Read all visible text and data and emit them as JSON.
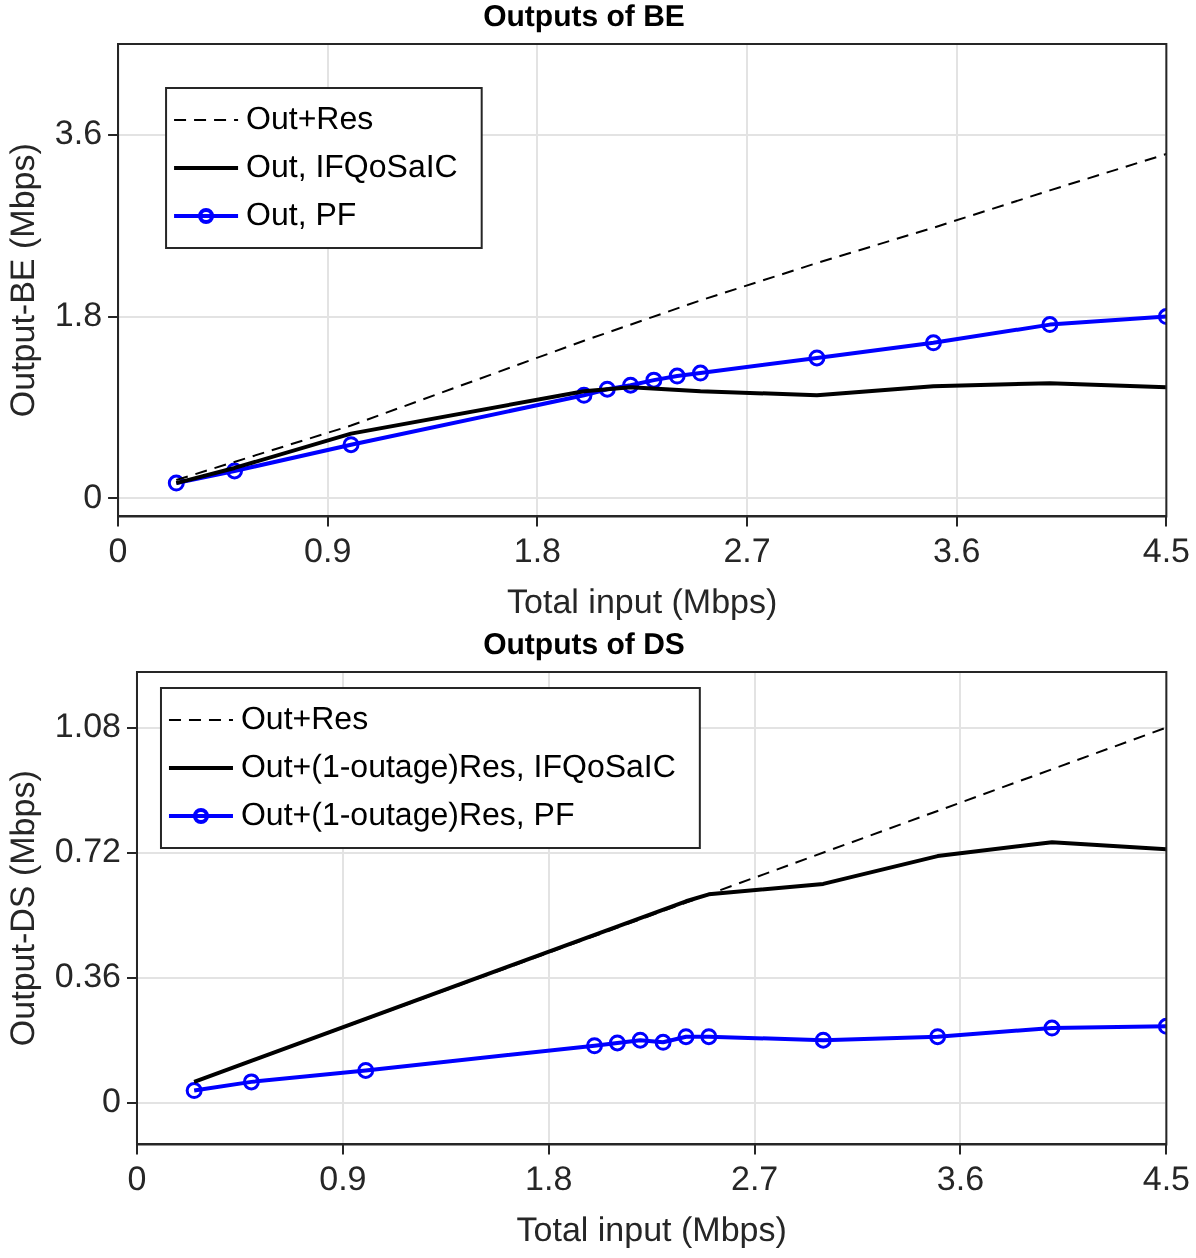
{
  "chart_data": [
    {
      "type": "line",
      "title": "Outputs of BE",
      "xlabel": "Total input (Mbps)",
      "ylabel": "Output-BE (Mbps)",
      "xlim": [
        0,
        4.5
      ],
      "xticks": [
        0,
        0.9,
        1.8,
        2.7,
        3.6,
        4.5
      ],
      "ylim": [
        -0.18,
        4.5
      ],
      "yticks": [
        0,
        1.8,
        3.6
      ],
      "grid": true,
      "legend": "top left",
      "series": [
        {
          "name": "Out+Res",
          "color": "#000000",
          "line_style": "dashed",
          "marker": "none",
          "x": [
            0.25,
            1.0,
            2.0,
            2.5,
            3.0,
            3.5,
            4.0,
            4.5
          ],
          "values": [
            0.18,
            0.72,
            1.56,
            1.96,
            2.33,
            2.68,
            3.05,
            3.41
          ]
        },
        {
          "name": "Out, IFQoSaIC",
          "color": "#000000",
          "line_style": "solid",
          "marker": "none",
          "x": [
            0.25,
            0.5,
            1.0,
            2.0,
            2.2,
            2.5,
            3.0,
            3.5,
            4.0,
            4.5
          ],
          "values": [
            0.15,
            0.3,
            0.64,
            1.06,
            1.1,
            1.06,
            1.02,
            1.11,
            1.14,
            1.1
          ]
        },
        {
          "name": "Out, PF",
          "color": "#0000ff",
          "line_style": "solid",
          "marker": "circle",
          "x": [
            0.25,
            0.5,
            1.0,
            2.0,
            2.1,
            2.2,
            2.3,
            2.4,
            2.5,
            3.0,
            3.5,
            4.0,
            4.5
          ],
          "values": [
            0.15,
            0.27,
            0.53,
            1.02,
            1.08,
            1.12,
            1.17,
            1.21,
            1.24,
            1.39,
            1.54,
            1.72,
            1.8
          ]
        }
      ]
    },
    {
      "type": "line",
      "title": "Outputs of DS",
      "xlabel": "Total input (Mbps)",
      "ylabel": "Output-DS (Mbps)",
      "xlim": [
        0,
        4.5
      ],
      "xticks": [
        0,
        0.9,
        1.8,
        2.7,
        3.6,
        4.5
      ],
      "ylim": [
        -0.12,
        1.24
      ],
      "yticks": [
        0,
        0.36,
        0.72,
        1.08
      ],
      "grid": true,
      "legend": "top left",
      "series": [
        {
          "name": "Out+Res",
          "color": "#000000",
          "line_style": "dashed",
          "marker": "none",
          "x": [
            0.25,
            2.5,
            4.5
          ],
          "values": [
            0.06,
            0.6,
            1.08
          ]
        },
        {
          "name": "Out+(1-outage)Res, IFQoSaIC",
          "color": "#000000",
          "line_style": "solid",
          "marker": "none",
          "x": [
            0.25,
            2.4,
            2.5,
            3.0,
            3.5,
            4.0,
            4.5
          ],
          "values": [
            0.06,
            0.58,
            0.6,
            0.63,
            0.71,
            0.75,
            0.73
          ]
        },
        {
          "name": "Out+(1-outage)Res, PF",
          "color": "#0000ff",
          "line_style": "solid",
          "marker": "circle",
          "x": [
            0.25,
            0.5,
            1.0,
            2.0,
            2.1,
            2.2,
            2.3,
            2.4,
            2.5,
            3.0,
            3.5,
            4.0,
            4.5
          ],
          "values": [
            0.035,
            0.06,
            0.093,
            0.164,
            0.172,
            0.18,
            0.174,
            0.19,
            0.19,
            0.18,
            0.19,
            0.215,
            0.22
          ]
        }
      ]
    }
  ]
}
